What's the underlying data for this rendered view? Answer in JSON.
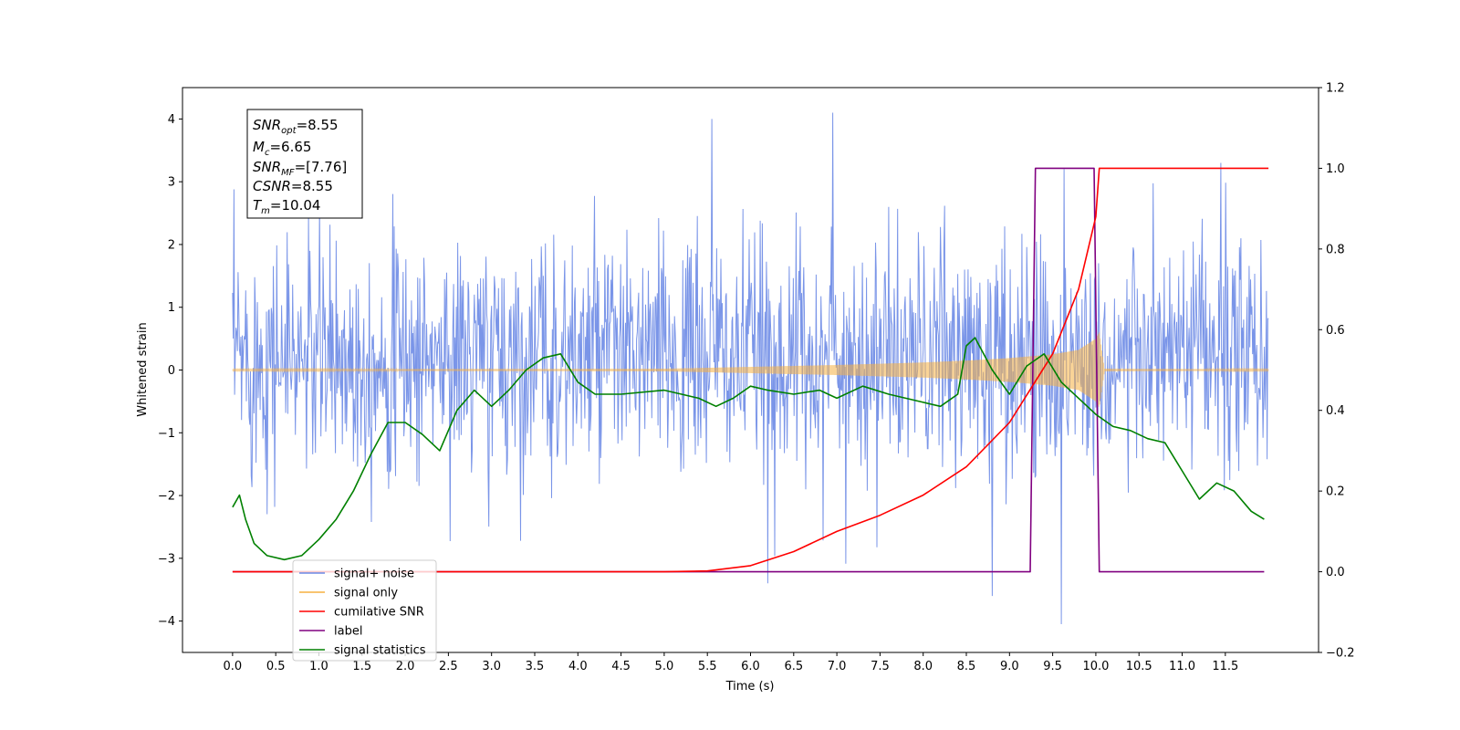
{
  "chart_data": {
    "type": "line",
    "xlabel": "Time (s)",
    "ylabel": "Whitened strain",
    "xlim": [
      -0.58,
      12.58
    ],
    "ylim": [
      -4.5,
      4.5
    ],
    "y2lim": [
      -0.2,
      1.2
    ],
    "x_ticks": [
      "0.0",
      "0.5",
      "1.0",
      "1.5",
      "2.0",
      "2.5",
      "3.0",
      "3.5",
      "4.0",
      "4.5",
      "5.0",
      "5.5",
      "6.0",
      "6.5",
      "7.0",
      "7.5",
      "8.0",
      "8.5",
      "9.0",
      "9.5",
      "10.0",
      "10.5",
      "11.0",
      "11.5"
    ],
    "y_ticks": [
      "4",
      "3",
      "2",
      "1",
      "0",
      "−1",
      "−2",
      "−3",
      "−4"
    ],
    "y2_ticks": [
      "1.2",
      "1.0",
      "0.8",
      "0.6",
      "0.4",
      "0.2",
      "0.0",
      "−0.2"
    ],
    "annotation": {
      "snr_opt": "8.55",
      "mc": "6.65",
      "snr_mf": "[7.76]",
      "csnr": "8.55",
      "tm": "10.04"
    },
    "legend": {
      "placement": "lower-left",
      "entries": [
        {
          "label": "signal+ noise",
          "color": "#6b8ae6"
        },
        {
          "label": "signal only",
          "color": "#f5b041"
        },
        {
          "label": "cumilative SNR",
          "color": "#ff0000"
        },
        {
          "label": "label",
          "color": "#800080"
        },
        {
          "label": "signal statistics",
          "color": "#008000"
        }
      ]
    },
    "series": [
      {
        "name": "signal+ noise",
        "axis": "left",
        "color": "#6b8ae6",
        "t_range": [
          0.0,
          12.0
        ],
        "band_envelope": {
          "t": [
            0.0,
            12.0
          ],
          "upper": [
            2.3,
            2.3
          ],
          "lower": [
            -1.9,
            -1.9
          ]
        },
        "notable_peaks": [
          {
            "t": 5.55,
            "v": 4.0
          },
          {
            "t": 6.95,
            "v": 4.1
          },
          {
            "t": 11.45,
            "v": 3.3
          },
          {
            "t": 9.6,
            "v": -4.05
          },
          {
            "t": 8.8,
            "v": -3.6
          },
          {
            "t": 6.2,
            "v": -3.4
          }
        ]
      },
      {
        "name": "signal only",
        "axis": "left",
        "color": "#f5b041",
        "envelope": {
          "t": [
            0.0,
            5.0,
            6.0,
            7.0,
            8.0,
            8.5,
            9.0,
            9.5,
            9.8,
            10.0,
            10.04,
            10.1,
            12.0
          ],
          "amp": [
            0.01,
            0.02,
            0.05,
            0.08,
            0.12,
            0.15,
            0.19,
            0.25,
            0.32,
            0.5,
            0.6,
            0.02,
            0.01
          ]
        }
      },
      {
        "name": "cumilative SNR",
        "axis": "right",
        "color": "#ff0000",
        "t": [
          0.0,
          5.0,
          5.5,
          6.0,
          6.5,
          7.0,
          7.5,
          8.0,
          8.5,
          9.0,
          9.5,
          9.8,
          10.0,
          10.04,
          12.0
        ],
        "values": [
          0.0,
          0.0,
          0.002,
          0.015,
          0.05,
          0.1,
          0.14,
          0.19,
          0.26,
          0.37,
          0.54,
          0.7,
          0.88,
          1.0,
          1.0
        ]
      },
      {
        "name": "label",
        "axis": "right",
        "color": "#800080",
        "t": [
          0.0,
          9.24,
          9.3,
          9.98,
          10.04,
          11.95
        ],
        "values": [
          0.0,
          0.0,
          1.0,
          1.0,
          0.0,
          0.0
        ]
      },
      {
        "name": "signal statistics",
        "axis": "right",
        "color": "#008000",
        "t": [
          0.0,
          0.08,
          0.15,
          0.25,
          0.4,
          0.6,
          0.8,
          1.0,
          1.2,
          1.4,
          1.6,
          1.8,
          2.0,
          2.2,
          2.4,
          2.6,
          2.8,
          3.0,
          3.2,
          3.4,
          3.6,
          3.8,
          4.0,
          4.2,
          4.5,
          5.0,
          5.2,
          5.4,
          5.6,
          5.8,
          6.0,
          6.2,
          6.5,
          6.8,
          7.0,
          7.3,
          7.6,
          8.0,
          8.2,
          8.4,
          8.5,
          8.6,
          8.8,
          9.0,
          9.2,
          9.4,
          9.6,
          9.8,
          10.0,
          10.2,
          10.4,
          10.6,
          10.8,
          11.0,
          11.2,
          11.4,
          11.6,
          11.8,
          11.95
        ],
        "values": [
          0.16,
          0.19,
          0.13,
          0.07,
          0.04,
          0.03,
          0.04,
          0.08,
          0.13,
          0.2,
          0.29,
          0.37,
          0.37,
          0.34,
          0.3,
          0.4,
          0.45,
          0.41,
          0.45,
          0.5,
          0.53,
          0.54,
          0.47,
          0.44,
          0.44,
          0.45,
          0.44,
          0.43,
          0.41,
          0.43,
          0.46,
          0.45,
          0.44,
          0.45,
          0.43,
          0.46,
          0.44,
          0.42,
          0.41,
          0.44,
          0.56,
          0.58,
          0.5,
          0.44,
          0.51,
          0.54,
          0.47,
          0.43,
          0.39,
          0.36,
          0.35,
          0.33,
          0.32,
          0.25,
          0.18,
          0.22,
          0.2,
          0.15,
          0.13
        ]
      }
    ]
  }
}
